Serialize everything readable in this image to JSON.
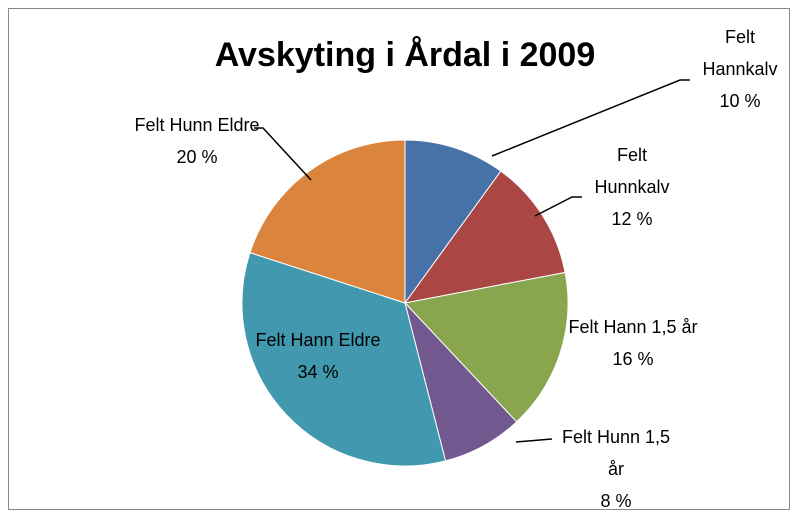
{
  "chart_data": {
    "type": "pie",
    "title": "Avskyting i Årdal i 2009",
    "categories": [
      "Felt Hannkalv",
      "Felt Hunnkalv",
      "Felt Hann 1,5 år",
      "Felt Hunn 1,5 år",
      "Felt Hann Eldre",
      "Felt Hunn Eldre"
    ],
    "values": [
      10,
      12,
      16,
      8,
      34,
      20
    ],
    "value_labels": [
      "10 %",
      "12 %",
      "16 %",
      "8 %",
      "34 %",
      "20 %"
    ],
    "colors": [
      "#4672a8",
      "#aa4643",
      "#89a54e",
      "#71588f",
      "#4198af",
      "#db843d"
    ]
  }
}
